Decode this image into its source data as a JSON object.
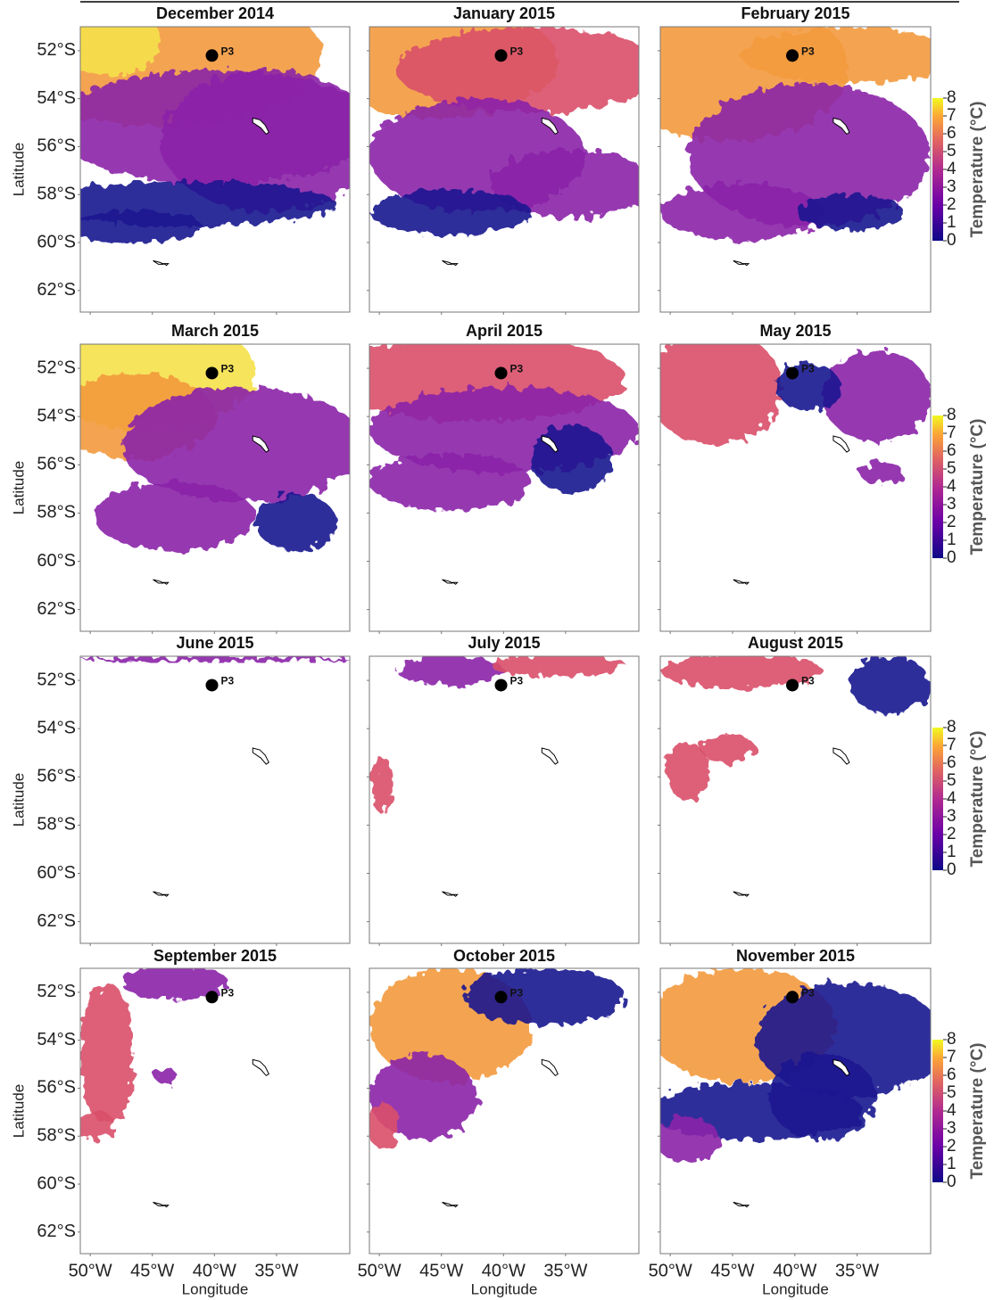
{
  "chart_data": {
    "type": "map",
    "panels": [
      "December 2014",
      "January 2015",
      "February 2015",
      "March 2015",
      "April 2015",
      "May 2015",
      "June 2015",
      "July 2015",
      "August 2015",
      "September 2015",
      "October 2015",
      "November 2015"
    ],
    "xlabel": "Longitude",
    "ylabel": "Latitude",
    "xlim": [
      -50.8,
      -29.1
    ],
    "ylim": [
      -62.9,
      -51
    ],
    "xticks": [
      {
        "value": -50,
        "label": "50°W"
      },
      {
        "value": -45,
        "label": "45°W"
      },
      {
        "value": -40,
        "label": "40°W"
      },
      {
        "value": -35,
        "label": "35°W"
      }
    ],
    "yticks": [
      {
        "value": -52,
        "label": "52°S"
      },
      {
        "value": -54,
        "label": "54°S"
      },
      {
        "value": -56,
        "label": "56°S"
      },
      {
        "value": -58,
        "label": "58°S"
      },
      {
        "value": -60,
        "label": "60°S"
      },
      {
        "value": -62,
        "label": "62°S"
      }
    ],
    "colorbar": {
      "label": "Temperature (°C)",
      "lim": [
        0,
        8
      ],
      "ticks": [
        0,
        1,
        2,
        3,
        4,
        5,
        6,
        7,
        8
      ]
    },
    "station": {
      "label": "P3",
      "lon": -40.2,
      "lat": -52.2
    }
  }
}
